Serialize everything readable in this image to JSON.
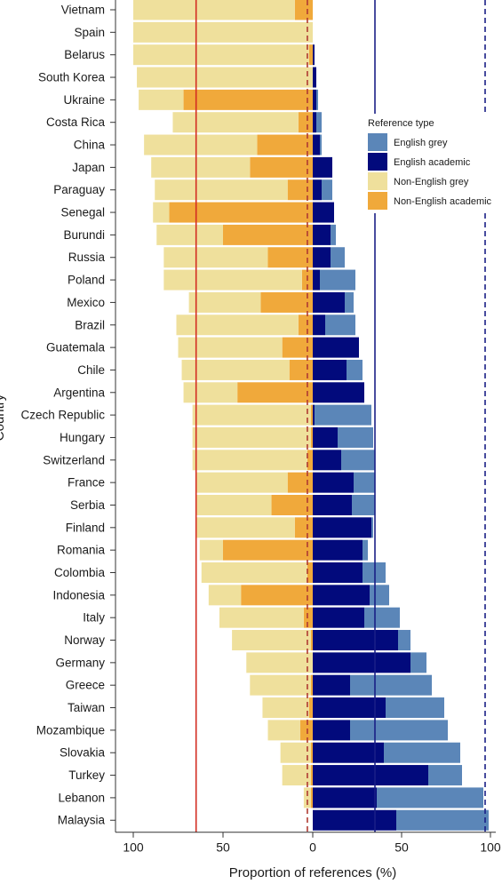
{
  "chart_data": {
    "type": "bar",
    "orientation": "horizontal-diverging",
    "xlabel": "Proportion of references (%)",
    "ylabel": "Country",
    "xticks": [
      "100",
      "50",
      "0",
      "50",
      "100"
    ],
    "xlim_left": 100,
    "xlim_right": 100,
    "legend": {
      "title": "Reference type",
      "position": "right",
      "entries": [
        {
          "name": "English grey",
          "color": "#5b86b8"
        },
        {
          "name": "English academic",
          "color": "#020a7c"
        },
        {
          "name": "Non-English grey",
          "color": "#efe09c"
        },
        {
          "name": "Non-English academic",
          "color": "#f0a93b"
        }
      ]
    },
    "reference_lines": [
      {
        "side": "left",
        "value": 65,
        "style": "solid",
        "color": "#d32d22"
      },
      {
        "side": "left",
        "value": 3,
        "style": "dashed",
        "color": "#b03a32"
      },
      {
        "side": "right",
        "value": 35,
        "style": "solid",
        "color": "#1a1f86"
      },
      {
        "side": "right",
        "value": 97,
        "style": "dashed",
        "color": "#1a1f86"
      }
    ],
    "categories": [
      "Vietnam",
      "Spain",
      "Belarus",
      "South Korea",
      "Ukraine",
      "Costa Rica",
      "China",
      "Japan",
      "Paraguay",
      "Senegal",
      "Burundi",
      "Russia",
      "Poland",
      "Mexico",
      "Brazil",
      "Guatemala",
      "Chile",
      "Argentina",
      "Czech Republic",
      "Hungary",
      "Switzerland",
      "France",
      "Serbia",
      "Finland",
      "Romania",
      "Colombia",
      "Indonesia",
      "Italy",
      "Norway",
      "Germany",
      "Greece",
      "Taiwan",
      "Mozambique",
      "Slovakia",
      "Turkey",
      "Lebanon",
      "Malaysia"
    ],
    "series": [
      {
        "name": "English grey",
        "values": [
          0,
          0,
          0,
          0,
          1,
          3,
          1,
          0,
          6,
          0,
          3,
          8,
          20,
          5,
          17,
          0,
          9,
          0,
          32,
          20,
          19,
          12,
          13,
          1,
          3,
          13,
          11,
          20,
          7,
          9,
          46,
          33,
          55,
          43,
          19,
          60,
          52
        ]
      },
      {
        "name": "English academic",
        "values": [
          0,
          0,
          1,
          2,
          2,
          2,
          4,
          11,
          5,
          12,
          10,
          10,
          4,
          18,
          7,
          26,
          19,
          29,
          1,
          14,
          16,
          23,
          22,
          33,
          28,
          28,
          32,
          29,
          48,
          55,
          21,
          41,
          21,
          40,
          65,
          36,
          47
        ]
      },
      {
        "name": "Non-English grey",
        "values": [
          90,
          100,
          98,
          98,
          25,
          70,
          63,
          55,
          74,
          9,
          37,
          58,
          77,
          40,
          68,
          58,
          60,
          30,
          66,
          66,
          64,
          51,
          42,
          55,
          13,
          59,
          18,
          47,
          44,
          37,
          34,
          26,
          18,
          17,
          16,
          4,
          0
        ]
      },
      {
        "name": "Non-English academic",
        "values": [
          10,
          0,
          2,
          0,
          72,
          8,
          31,
          35,
          14,
          80,
          50,
          25,
          6,
          29,
          8,
          17,
          13,
          42,
          1,
          1,
          3,
          14,
          23,
          10,
          50,
          3,
          40,
          5,
          1,
          0,
          1,
          2,
          7,
          1,
          1,
          1,
          0
        ]
      }
    ]
  }
}
